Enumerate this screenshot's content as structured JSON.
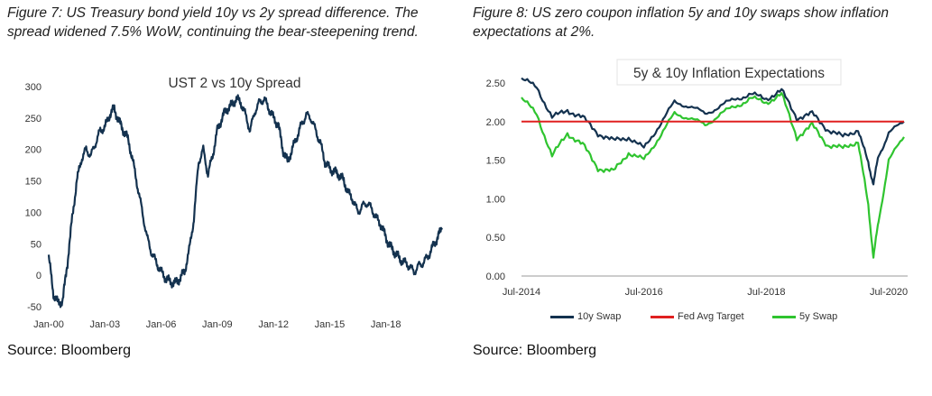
{
  "figure7": {
    "caption": "Figure 7: US Treasury bond yield 10y vs 2y spread difference. The spread widened 7.5% WoW, continuing the bear-steepening trend.",
    "source": "Source: Bloomberg"
  },
  "figure8": {
    "caption": "Figure 8: US zero coupon inflation 5y and 10y swaps show inflation expectations at 2%.",
    "source": "Source: Bloomberg"
  },
  "colors": {
    "navy": "#14324f",
    "red": "#e02020",
    "green": "#2fc42f"
  },
  "chart_data": [
    {
      "type": "line",
      "title": "UST 2 vs 10y Spread",
      "xlabel": "",
      "ylabel": "",
      "x_tick_labels": [
        "Jan-00",
        "Jan-03",
        "Jan-06",
        "Jan-09",
        "Jan-12",
        "Jan-15",
        "Jan-18"
      ],
      "y_tick_labels": [
        "300",
        "250",
        "200",
        "150",
        "100",
        "50",
        "0",
        "-50"
      ],
      "ylim": [
        -50,
        300
      ],
      "grid": false,
      "series": [
        {
          "x": [
            "2000-01",
            "2000-04",
            "2000-07",
            "2000-10",
            "2001-01",
            "2001-04",
            "2001-07",
            "2001-10",
            "2002-01",
            "2002-04",
            "2002-07",
            "2002-10",
            "2003-01",
            "2003-04",
            "2003-07",
            "2003-10",
            "2004-01",
            "2004-04",
            "2004-07",
            "2004-10",
            "2005-01",
            "2005-04",
            "2005-07",
            "2005-10",
            "2006-01",
            "2006-04",
            "2006-07",
            "2006-10",
            "2007-01",
            "2007-04",
            "2007-07",
            "2007-10",
            "2008-01",
            "2008-04",
            "2008-07",
            "2008-10",
            "2009-01",
            "2009-04",
            "2009-07",
            "2009-10",
            "2010-01",
            "2010-04",
            "2010-07",
            "2010-10",
            "2011-01",
            "2011-04",
            "2011-07",
            "2011-10",
            "2012-01",
            "2012-04",
            "2012-07",
            "2012-10",
            "2013-01",
            "2013-04",
            "2013-07",
            "2013-10",
            "2014-01",
            "2014-04",
            "2014-07",
            "2014-10",
            "2015-01",
            "2015-04",
            "2015-07",
            "2015-10",
            "2016-01",
            "2016-04",
            "2016-07",
            "2016-10",
            "2017-01",
            "2017-04",
            "2017-07",
            "2017-10",
            "2018-01",
            "2018-04",
            "2018-07",
            "2018-10",
            "2019-01",
            "2019-04",
            "2019-07",
            "2019-10",
            "2020-01",
            "2020-04",
            "2020-07",
            "2020-10",
            "2021-01"
          ],
          "values": [
            30,
            -30,
            -45,
            -40,
            20,
            90,
            150,
            185,
            200,
            190,
            210,
            230,
            235,
            255,
            265,
            245,
            230,
            215,
            180,
            140,
            100,
            60,
            35,
            20,
            5,
            -5,
            -10,
            -12,
            -5,
            5,
            40,
            90,
            180,
            200,
            160,
            190,
            230,
            250,
            265,
            270,
            280,
            275,
            255,
            230,
            260,
            275,
            280,
            265,
            250,
            240,
            200,
            180,
            200,
            220,
            240,
            255,
            250,
            230,
            210,
            180,
            170,
            165,
            160,
            150,
            130,
            120,
            100,
            110,
            115,
            105,
            90,
            80,
            60,
            45,
            35,
            25,
            20,
            15,
            5,
            15,
            20,
            30,
            45,
            60,
            75
          ]
        }
      ]
    },
    {
      "type": "line",
      "title": "5y & 10y  Inflation Expectations",
      "xlabel": "",
      "ylabel": "",
      "x_tick_labels": [
        "Jul-2014",
        "Jul-2016",
        "Jul-2018",
        "Jul-2020"
      ],
      "y_tick_labels": [
        "2.50",
        "2.00",
        "1.50",
        "1.00",
        "0.50",
        "0.00"
      ],
      "ylim": [
        0,
        2.5
      ],
      "grid": false,
      "legend": "bottom",
      "series": [
        {
          "name": "10y Swap",
          "color": "#14324f",
          "x": [
            "2014-07",
            "2014-10",
            "2015-01",
            "2015-04",
            "2015-07",
            "2015-10",
            "2016-01",
            "2016-04",
            "2016-07",
            "2016-10",
            "2017-01",
            "2017-04",
            "2017-07",
            "2017-10",
            "2018-01",
            "2018-04",
            "2018-07",
            "2018-10",
            "2019-01",
            "2019-04",
            "2019-07",
            "2019-10",
            "2020-01",
            "2020-03",
            "2020-04",
            "2020-05",
            "2020-07",
            "2020-10"
          ],
          "values": [
            2.55,
            2.45,
            2.05,
            2.15,
            2.05,
            1.85,
            1.75,
            1.8,
            1.65,
            1.95,
            2.25,
            2.2,
            2.1,
            2.2,
            2.3,
            2.35,
            2.3,
            2.4,
            2.05,
            2.1,
            1.9,
            1.8,
            1.9,
            1.45,
            1.2,
            1.55,
            1.85,
            2.0
          ]
        },
        {
          "name": "Fed Avg Target",
          "color": "#e02020",
          "x": [
            "2014-07",
            "2020-10"
          ],
          "values": [
            2.0,
            2.0
          ]
        },
        {
          "name": "5y Swap",
          "color": "#2fc42f",
          "x": [
            "2014-07",
            "2014-10",
            "2015-01",
            "2015-04",
            "2015-07",
            "2015-10",
            "2016-01",
            "2016-04",
            "2016-07",
            "2016-10",
            "2017-01",
            "2017-04",
            "2017-07",
            "2017-10",
            "2018-01",
            "2018-04",
            "2018-07",
            "2018-10",
            "2019-01",
            "2019-04",
            "2019-07",
            "2019-10",
            "2020-01",
            "2020-03",
            "2020-04",
            "2020-05",
            "2020-07",
            "2020-10"
          ],
          "values": [
            2.3,
            2.1,
            1.55,
            1.85,
            1.7,
            1.4,
            1.35,
            1.6,
            1.5,
            1.8,
            2.1,
            2.05,
            1.95,
            2.1,
            2.2,
            2.3,
            2.25,
            2.35,
            1.8,
            1.95,
            1.7,
            1.65,
            1.75,
            0.9,
            0.25,
            0.7,
            1.5,
            1.8
          ]
        }
      ]
    }
  ]
}
